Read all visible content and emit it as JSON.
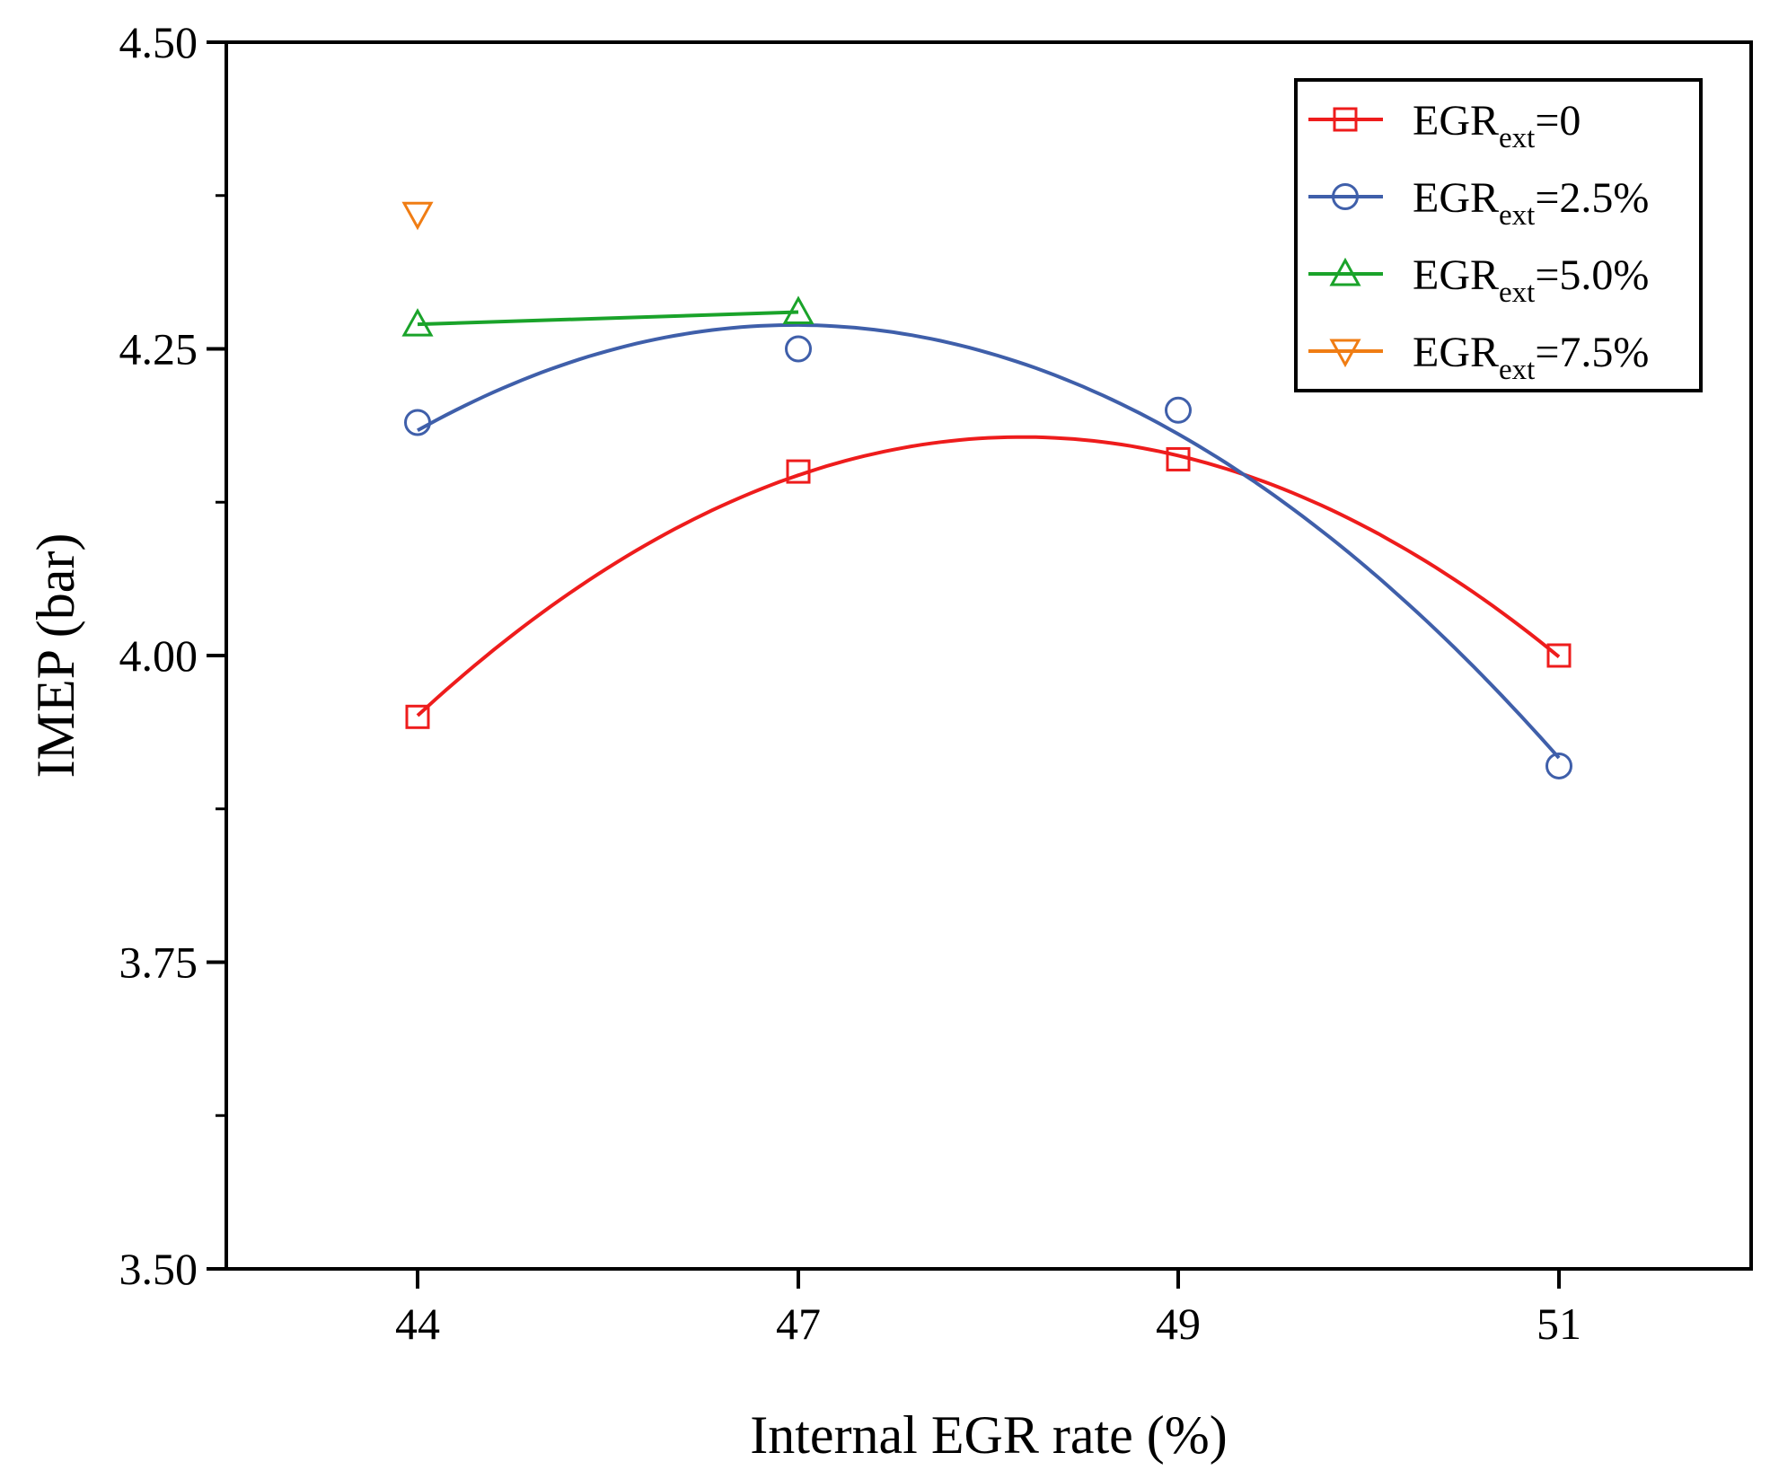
{
  "chart_data": {
    "type": "line",
    "title": "",
    "xlabel": "Internal EGR rate (%)",
    "ylabel": "IMEP (bar)",
    "ylim": [
      3.5,
      4.5
    ],
    "y_ticks": [
      "3.50",
      "3.75",
      "4.00",
      "4.25",
      "4.50"
    ],
    "categories": [
      "44",
      "47",
      "49",
      "51"
    ],
    "legend_position": "top-right",
    "series": [
      {
        "name": "EGR_ext=0",
        "label_main": "EGR",
        "label_sub": "ext",
        "label_tail": "=0",
        "color": "#ee1c1c",
        "marker": "square",
        "values": [
          3.95,
          4.15,
          4.16,
          4.0
        ],
        "fit": "quadratic"
      },
      {
        "name": "EGR_ext=2.5%",
        "label_main": "EGR",
        "label_sub": "ext",
        "label_tail": "=2.5%",
        "color": "#3f5faa",
        "marker": "circle",
        "values": [
          4.19,
          4.25,
          4.2,
          3.91
        ],
        "fit": "quadratic"
      },
      {
        "name": "EGR_ext=5.0%",
        "label_main": "EGR",
        "label_sub": "ext",
        "label_tail": "=5.0%",
        "color": "#1aa32a",
        "marker": "triangle-up",
        "values": [
          4.27,
          4.28,
          null,
          null
        ],
        "fit": "linear"
      },
      {
        "name": "EGR_ext=7.5%",
        "label_main": "EGR",
        "label_sub": "ext",
        "label_tail": "=7.5%",
        "color": "#f07d14",
        "marker": "triangle-down",
        "values": [
          4.36,
          null,
          null,
          null
        ],
        "fit": "none"
      }
    ]
  }
}
